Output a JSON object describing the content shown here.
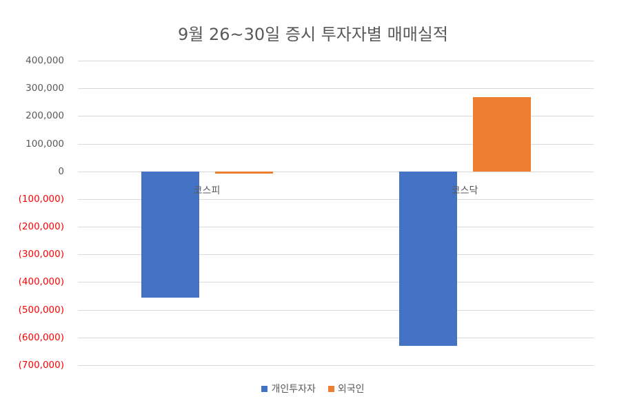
{
  "chart_data": {
    "type": "bar",
    "title": "9월 26~30일 증시 투자자별 매매실적",
    "categories": [
      "코스피",
      "코스닥"
    ],
    "series": [
      {
        "name": "개인투자자",
        "color": "#4472C4",
        "values": [
          -456000,
          -630000
        ]
      },
      {
        "name": "외국인",
        "color": "#ED7D31",
        "values": [
          -9000,
          267000
        ]
      }
    ],
    "xlabel": "",
    "ylabel": "",
    "ylim": [
      -700000,
      400000
    ],
    "yticks": [
      400000,
      300000,
      200000,
      100000,
      0,
      -100000,
      -200000,
      -300000,
      -400000,
      -500000,
      -600000,
      -700000
    ],
    "ytick_labels": [
      "400,000",
      "300,000",
      "200,000",
      "100,000",
      "0",
      "(100,000)",
      "(200,000)",
      "(300,000)",
      "(400,000)",
      "(500,000)",
      "(600,000)",
      "(700,000)"
    ],
    "negative_label_color": "#FF0000",
    "grid": true,
    "legend_position": "bottom"
  }
}
